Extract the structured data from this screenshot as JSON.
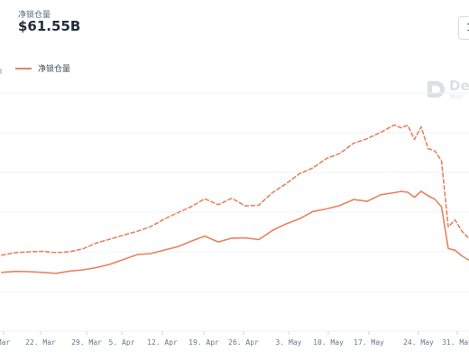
{
  "header": {
    "metric_label": "净锁仓量",
    "metric_value": "$61.55B",
    "corner_button": "1"
  },
  "legend": {
    "items": [
      {
        "label": "净锁仓量",
        "color": "#e8825f"
      }
    ]
  },
  "watermark": {
    "text": "De",
    "subtext": "Your"
  },
  "colors": {
    "series": "#e8825f",
    "grid": "#eef1f4",
    "axis_text": "#66778a"
  },
  "chart_data": {
    "type": "line",
    "title": "",
    "xlabel": "",
    "ylabel": "",
    "x_ticks": [
      "Mar",
      "22. Mar",
      "29. Mar",
      "5. Apr",
      "12. Apr",
      "19. Apr",
      "26. Apr",
      "3. May",
      "10. May",
      "17. May",
      "24. May",
      "31. May"
    ],
    "x_range": [
      "2021-03-14",
      "2021-06-03"
    ],
    "grid": true,
    "legend_position": "top-left",
    "series": [
      {
        "name": "净锁仓量",
        "style": "solid",
        "x": [
          "2021-03-14",
          "2021-03-16",
          "2021-03-18",
          "2021-03-20",
          "2021-03-22",
          "2021-03-24",
          "2021-03-26",
          "2021-03-28",
          "2021-03-30",
          "2021-04-01",
          "2021-04-03",
          "2021-04-05",
          "2021-04-07",
          "2021-04-09",
          "2021-04-11",
          "2021-04-13",
          "2021-04-15",
          "2021-04-17",
          "2021-04-19",
          "2021-04-21",
          "2021-04-23",
          "2021-04-25",
          "2021-04-27",
          "2021-04-29",
          "2021-05-01",
          "2021-05-03",
          "2021-05-05",
          "2021-05-07",
          "2021-05-09",
          "2021-05-11",
          "2021-05-12",
          "2021-05-13",
          "2021-05-14",
          "2021-05-15",
          "2021-05-16",
          "2021-05-17",
          "2021-05-18",
          "2021-05-19",
          "2021-05-20",
          "2021-05-21",
          "2021-05-22",
          "2021-05-23",
          "2021-05-24",
          "2021-05-26",
          "2021-05-28",
          "2021-05-30",
          "2021-06-01",
          "2021-06-03"
        ],
        "values": [
          43.2,
          43.6,
          43.5,
          43.2,
          42.8,
          43.7,
          44.2,
          45.1,
          46.4,
          48.3,
          50.2,
          50.6,
          52.0,
          53.3,
          55.5,
          57.5,
          55.2,
          56.7,
          56.8,
          56.1,
          59.7,
          62.3,
          64.3,
          67.2,
          68.2,
          69.6,
          71.9,
          71.2,
          73.8,
          74.6,
          75.1,
          74.8,
          72.8,
          75.2,
          73.4,
          72.1,
          69.1,
          52.6,
          51.9,
          49.7,
          48.1,
          47.6,
          50.6,
          51.7,
          49.2,
          50.8,
          53.0,
          56.5
        ]
      },
      {
        "name": "",
        "style": "dashed",
        "x": [
          "2021-03-14",
          "2021-03-16",
          "2021-03-18",
          "2021-03-20",
          "2021-03-22",
          "2021-03-24",
          "2021-03-26",
          "2021-03-28",
          "2021-03-30",
          "2021-04-01",
          "2021-04-03",
          "2021-04-05",
          "2021-04-07",
          "2021-04-09",
          "2021-04-11",
          "2021-04-13",
          "2021-04-15",
          "2021-04-17",
          "2021-04-19",
          "2021-04-21",
          "2021-04-23",
          "2021-04-25",
          "2021-04-27",
          "2021-04-29",
          "2021-05-01",
          "2021-05-03",
          "2021-05-05",
          "2021-05-07",
          "2021-05-09",
          "2021-05-11",
          "2021-05-12",
          "2021-05-13",
          "2021-05-14",
          "2021-05-15",
          "2021-05-16",
          "2021-05-17",
          "2021-05-18",
          "2021-05-19",
          "2021-05-20",
          "2021-05-21",
          "2021-05-22",
          "2021-05-23",
          "2021-05-24",
          "2021-05-26",
          "2021-05-28",
          "2021-05-30",
          "2021-06-01",
          "2021-06-03"
        ],
        "values": [
          50.0,
          51.0,
          51.3,
          51.5,
          51.0,
          51.3,
          52.5,
          54.8,
          56.3,
          57.9,
          59.4,
          61.2,
          64.2,
          66.7,
          69.1,
          72.2,
          69.9,
          72.4,
          69.4,
          69.7,
          74.6,
          78.1,
          82.1,
          84.4,
          88.1,
          90.1,
          94.1,
          95.9,
          98.4,
          101.3,
          100.2,
          101.2,
          95.6,
          100.6,
          92.1,
          91.1,
          87.2,
          61.1,
          63.9,
          59.5,
          56.7,
          55.4,
          60.8,
          63.1,
          59.9,
          62.5,
          66.8,
          70.3
        ]
      }
    ],
    "ylim": [
      20,
      115
    ]
  }
}
